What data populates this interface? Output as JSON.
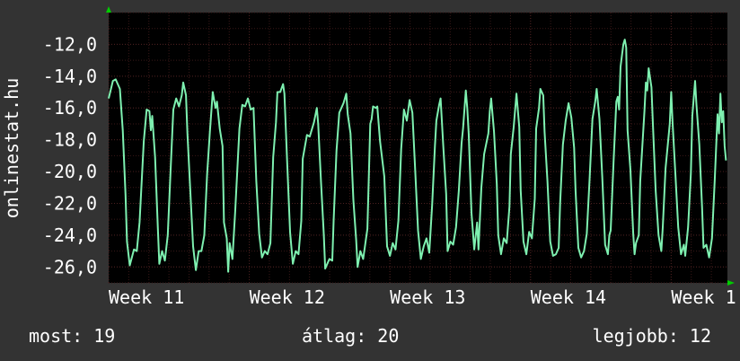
{
  "chart_data": {
    "type": "line",
    "ylabel": "onlinestat.hu",
    "ylim": [
      -27.0,
      -10.0
    ],
    "y_ticks": [
      "-12,0",
      "-14,0",
      "-16,0",
      "-18,0",
      "-20,0",
      "-22,0",
      "-24,0",
      "-26,0"
    ],
    "y_tick_values": [
      -12,
      -14,
      -16,
      -18,
      -20,
      -22,
      -24,
      -26
    ],
    "x_ticks": [
      "Week 11",
      "Week 12",
      "Week 13",
      "Week 14",
      "Week 1"
    ],
    "x_tick_values": [
      0,
      1,
      2,
      3,
      4
    ],
    "xlim": [
      0,
      4.4
    ],
    "grid": true,
    "colors": {
      "line": "#7ef0b0",
      "background": "#000000",
      "grid": "#4a2020",
      "frame": "#333333",
      "axis_arrow": "#00cc00"
    },
    "series": [
      {
        "values": [
          [
            0.0,
            -15.4
          ],
          [
            0.03,
            -14.3
          ],
          [
            0.05,
            -14.2
          ],
          [
            0.08,
            -14.8
          ],
          [
            0.1,
            -17.4
          ],
          [
            0.12,
            -21.5
          ],
          [
            0.13,
            -24.4
          ],
          [
            0.15,
            -25.9
          ],
          [
            0.18,
            -24.9
          ],
          [
            0.2,
            -25.0
          ],
          [
            0.22,
            -23.2
          ],
          [
            0.25,
            -18.1
          ],
          [
            0.27,
            -16.1
          ],
          [
            0.29,
            -16.2
          ],
          [
            0.3,
            -17.4
          ],
          [
            0.31,
            -16.5
          ],
          [
            0.33,
            -19.1
          ],
          [
            0.35,
            -23.6
          ],
          [
            0.36,
            -25.8
          ],
          [
            0.38,
            -25.0
          ],
          [
            0.4,
            -25.6
          ],
          [
            0.42,
            -24.0
          ],
          [
            0.44,
            -20.0
          ],
          [
            0.46,
            -16.1
          ],
          [
            0.48,
            -15.4
          ],
          [
            0.5,
            -15.9
          ],
          [
            0.52,
            -15.2
          ],
          [
            0.53,
            -14.4
          ],
          [
            0.55,
            -15.2
          ],
          [
            0.56,
            -17.6
          ],
          [
            0.58,
            -21.1
          ],
          [
            0.6,
            -24.7
          ],
          [
            0.62,
            -26.2
          ],
          [
            0.64,
            -25.0
          ],
          [
            0.66,
            -25.0
          ],
          [
            0.68,
            -24.0
          ],
          [
            0.7,
            -20.2
          ],
          [
            0.72,
            -17.5
          ],
          [
            0.74,
            -15.0
          ],
          [
            0.76,
            -16.0
          ],
          [
            0.77,
            -15.6
          ],
          [
            0.79,
            -17.3
          ],
          [
            0.81,
            -18.4
          ],
          [
            0.82,
            -23.2
          ],
          [
            0.84,
            -24.2
          ],
          [
            0.85,
            -26.3
          ],
          [
            0.86,
            -24.5
          ],
          [
            0.88,
            -25.5
          ],
          [
            0.9,
            -22.5
          ],
          [
            0.93,
            -17.3
          ],
          [
            0.95,
            -15.8
          ],
          [
            0.97,
            -15.9
          ],
          [
            0.99,
            -15.4
          ],
          [
            1.01,
            -16.1
          ],
          [
            1.03,
            -16.0
          ],
          [
            1.05,
            -20.6
          ],
          [
            1.07,
            -23.9
          ],
          [
            1.09,
            -25.4
          ],
          [
            1.11,
            -25.0
          ],
          [
            1.13,
            -25.2
          ],
          [
            1.15,
            -24.5
          ],
          [
            1.17,
            -19.1
          ],
          [
            1.19,
            -16.9
          ],
          [
            1.2,
            -15.0
          ],
          [
            1.22,
            -15.0
          ],
          [
            1.24,
            -14.5
          ],
          [
            1.25,
            -15.1
          ],
          [
            1.27,
            -19.6
          ],
          [
            1.29,
            -23.8
          ],
          [
            1.31,
            -25.8
          ],
          [
            1.33,
            -25.0
          ],
          [
            1.35,
            -25.2
          ],
          [
            1.37,
            -23.1
          ],
          [
            1.38,
            -19.2
          ],
          [
            1.41,
            -17.7
          ],
          [
            1.43,
            -17.8
          ],
          [
            1.46,
            -16.9
          ],
          [
            1.48,
            -16.0
          ],
          [
            1.49,
            -17.0
          ],
          [
            1.51,
            -20.7
          ],
          [
            1.53,
            -24.0
          ],
          [
            1.54,
            -26.1
          ],
          [
            1.57,
            -25.5
          ],
          [
            1.59,
            -25.6
          ],
          [
            1.6,
            -23.1
          ],
          [
            1.62,
            -18.7
          ],
          [
            1.64,
            -16.3
          ],
          [
            1.67,
            -15.7
          ],
          [
            1.69,
            -15.1
          ],
          [
            1.7,
            -16.4
          ],
          [
            1.72,
            -17.6
          ],
          [
            1.74,
            -21.8
          ],
          [
            1.76,
            -24.3
          ],
          [
            1.77,
            -26.0
          ],
          [
            1.79,
            -25.0
          ],
          [
            1.81,
            -25.5
          ],
          [
            1.84,
            -23.6
          ],
          [
            1.86,
            -17.0
          ],
          [
            1.87,
            -16.7
          ],
          [
            1.88,
            -15.9
          ],
          [
            1.9,
            -16.0
          ],
          [
            1.91,
            -15.9
          ],
          [
            1.93,
            -18.1
          ],
          [
            1.96,
            -20.3
          ],
          [
            1.98,
            -24.7
          ],
          [
            2.0,
            -25.3
          ],
          [
            2.02,
            -24.5
          ],
          [
            2.04,
            -24.9
          ],
          [
            2.06,
            -23.1
          ],
          [
            2.08,
            -18.6
          ],
          [
            2.1,
            -16.1
          ],
          [
            2.12,
            -16.8
          ],
          [
            2.14,
            -15.5
          ],
          [
            2.16,
            -16.3
          ],
          [
            2.18,
            -20.0
          ],
          [
            2.2,
            -23.7
          ],
          [
            2.22,
            -25.5
          ],
          [
            2.24,
            -24.7
          ],
          [
            2.26,
            -24.2
          ],
          [
            2.28,
            -25.1
          ],
          [
            2.3,
            -22.1
          ],
          [
            2.32,
            -18.4
          ],
          [
            2.33,
            -16.8
          ],
          [
            2.35,
            -15.8
          ],
          [
            2.36,
            -15.4
          ],
          [
            2.38,
            -18.5
          ],
          [
            2.4,
            -21.4
          ],
          [
            2.41,
            -25.0
          ],
          [
            2.43,
            -24.4
          ],
          [
            2.45,
            -24.6
          ],
          [
            2.47,
            -23.5
          ],
          [
            2.49,
            -21.2
          ],
          [
            2.51,
            -18.2
          ],
          [
            2.52,
            -17.3
          ],
          [
            2.54,
            -14.9
          ],
          [
            2.55,
            -16.0
          ],
          [
            2.56,
            -17.6
          ],
          [
            2.58,
            -22.6
          ],
          [
            2.6,
            -24.9
          ],
          [
            2.62,
            -23.2
          ],
          [
            2.63,
            -24.9
          ],
          [
            2.65,
            -21.0
          ],
          [
            2.67,
            -18.9
          ],
          [
            2.7,
            -17.6
          ],
          [
            2.71,
            -16.2
          ],
          [
            2.72,
            -15.4
          ],
          [
            2.74,
            -17.5
          ],
          [
            2.76,
            -20.8
          ],
          [
            2.77,
            -24.0
          ],
          [
            2.79,
            -25.2
          ],
          [
            2.81,
            -24.2
          ],
          [
            2.83,
            -24.5
          ],
          [
            2.85,
            -22.2
          ],
          [
            2.86,
            -18.9
          ],
          [
            2.88,
            -17.2
          ],
          [
            2.9,
            -15.1
          ],
          [
            2.92,
            -17.2
          ],
          [
            2.93,
            -21.2
          ],
          [
            2.95,
            -24.4
          ],
          [
            2.97,
            -25.2
          ],
          [
            2.99,
            -23.8
          ],
          [
            3.01,
            -24.2
          ],
          [
            3.03,
            -21.7
          ],
          [
            3.04,
            -17.3
          ],
          [
            3.06,
            -16.0
          ],
          [
            3.07,
            -14.8
          ],
          [
            3.09,
            -15.2
          ],
          [
            3.1,
            -17.5
          ],
          [
            3.12,
            -20.6
          ],
          [
            3.14,
            -24.4
          ],
          [
            3.16,
            -25.3
          ],
          [
            3.18,
            -25.2
          ],
          [
            3.2,
            -24.8
          ],
          [
            3.21,
            -22.0
          ],
          [
            3.23,
            -18.3
          ],
          [
            3.25,
            -16.8
          ],
          [
            3.27,
            -15.7
          ],
          [
            3.29,
            -16.6
          ],
          [
            3.31,
            -18.5
          ],
          [
            3.32,
            -21.2
          ],
          [
            3.34,
            -24.8
          ],
          [
            3.36,
            -25.4
          ],
          [
            3.38,
            -25.0
          ],
          [
            3.4,
            -23.9
          ],
          [
            3.42,
            -20.5
          ],
          [
            3.44,
            -16.7
          ],
          [
            3.46,
            -15.6
          ],
          [
            3.47,
            -14.8
          ],
          [
            3.49,
            -16.7
          ],
          [
            3.51,
            -20.3
          ],
          [
            3.53,
            -24.6
          ],
          [
            3.55,
            -25.2
          ],
          [
            3.56,
            -24.0
          ],
          [
            3.57,
            -23.7
          ],
          [
            3.59,
            -19.4
          ],
          [
            3.61,
            -15.6
          ],
          [
            3.62,
            -15.3
          ],
          [
            3.63,
            -16.1
          ],
          [
            3.64,
            -13.4
          ],
          [
            3.66,
            -12.0
          ],
          [
            3.67,
            -11.7
          ],
          [
            3.68,
            -12.2
          ],
          [
            3.69,
            -17.4
          ],
          [
            3.71,
            -19.9
          ],
          [
            3.73,
            -23.9
          ],
          [
            3.74,
            -25.2
          ],
          [
            3.75,
            -24.5
          ],
          [
            3.77,
            -24.0
          ],
          [
            3.78,
            -20.6
          ],
          [
            3.81,
            -16.2
          ],
          [
            3.82,
            -14.4
          ],
          [
            3.83,
            -14.9
          ],
          [
            3.84,
            -13.5
          ],
          [
            3.86,
            -14.7
          ],
          [
            3.87,
            -17.0
          ],
          [
            3.89,
            -21.2
          ],
          [
            3.91,
            -24.0
          ],
          [
            3.93,
            -25.0
          ],
          [
            3.94,
            -23.5
          ],
          [
            3.96,
            -19.8
          ],
          [
            3.99,
            -17.0
          ],
          [
            4.0,
            -15.0
          ],
          [
            4.01,
            -16.9
          ],
          [
            4.03,
            -20.2
          ],
          [
            4.05,
            -23.5
          ],
          [
            4.07,
            -25.2
          ],
          [
            4.09,
            -24.6
          ],
          [
            4.1,
            -25.3
          ],
          [
            4.12,
            -23.5
          ],
          [
            4.14,
            -20.1
          ],
          [
            4.15,
            -16.5
          ],
          [
            4.17,
            -14.3
          ],
          [
            4.18,
            -15.8
          ],
          [
            4.2,
            -18.3
          ],
          [
            4.22,
            -22.3
          ],
          [
            4.23,
            -24.8
          ],
          [
            4.25,
            -24.6
          ],
          [
            4.27,
            -25.4
          ],
          [
            4.29,
            -24.2
          ],
          [
            4.31,
            -20.5
          ],
          [
            4.33,
            -16.4
          ],
          [
            4.34,
            -17.6
          ],
          [
            4.35,
            -15.1
          ],
          [
            4.36,
            -16.9
          ],
          [
            4.37,
            -16.2
          ],
          [
            4.38,
            -18.4
          ],
          [
            4.39,
            -19.3
          ]
        ]
      }
    ]
  },
  "footer": {
    "current": "most: 19",
    "average": "átlag: 20",
    "best": "legjobb: 12"
  }
}
